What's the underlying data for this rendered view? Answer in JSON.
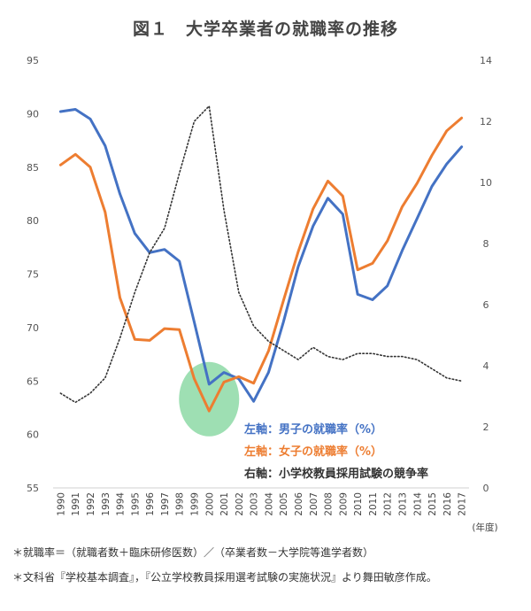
{
  "title": "図１　大学卒業者の就職率の推移",
  "notes": [
    "＊就職率＝（就職者数＋臨床研修医数）／（卒業者数－大学院等進学者数）",
    "＊文科省『学校基本調査』，『公立学校教員採用選考試験の実施状況』より舞田敏彦作成。"
  ],
  "chart_data": {
    "type": "line",
    "xlabel": "(年度)",
    "x": [
      1990,
      1991,
      1992,
      1993,
      1994,
      1995,
      1996,
      1997,
      1998,
      1999,
      2000,
      2001,
      2002,
      2003,
      2004,
      2005,
      2006,
      2007,
      2008,
      2009,
      2010,
      2011,
      2012,
      2013,
      2014,
      2015,
      2016,
      2017
    ],
    "left_axis": {
      "ylim": [
        55,
        95
      ],
      "ticks": [
        55,
        60,
        65,
        70,
        75,
        80,
        85,
        90,
        95
      ]
    },
    "right_axis": {
      "ylim": [
        0,
        14
      ],
      "ticks": [
        0,
        2,
        4,
        6,
        8,
        10,
        12,
        14
      ]
    },
    "series": [
      {
        "name": "左軸：男子の就職率（%）",
        "axis": "left",
        "color": "#4472C4",
        "style": "solid",
        "values": [
          90.2,
          90.4,
          89.5,
          87.0,
          82.5,
          78.8,
          77.0,
          77.3,
          76.2,
          70.5,
          64.7,
          65.8,
          65.2,
          63.1,
          65.8,
          70.5,
          75.7,
          79.5,
          82.1,
          80.6,
          73.1,
          72.6,
          73.9,
          77.2,
          80.2,
          83.2,
          85.3,
          86.9
        ]
      },
      {
        "name": "左軸：女子の就職率（%）",
        "axis": "left",
        "color": "#ED7D31",
        "style": "solid",
        "values": [
          85.2,
          86.2,
          85.0,
          80.8,
          72.8,
          68.9,
          68.8,
          69.9,
          69.8,
          65.2,
          62.2,
          64.9,
          65.4,
          64.8,
          67.8,
          72.5,
          77.1,
          81.1,
          83.7,
          82.3,
          75.4,
          76.0,
          78.1,
          81.3,
          83.5,
          86.1,
          88.4,
          89.6
        ]
      },
      {
        "name": "右軸：小学校教員採用試験の競争率",
        "axis": "right",
        "color": "#333333",
        "style": "dotted",
        "values": [
          3.1,
          2.8,
          3.1,
          3.6,
          4.9,
          6.4,
          7.7,
          8.5,
          10.3,
          12.0,
          12.5,
          9.1,
          6.4,
          5.3,
          4.8,
          4.5,
          4.2,
          4.6,
          4.3,
          4.2,
          4.4,
          4.4,
          4.3,
          4.3,
          4.2,
          3.9,
          3.6,
          3.5
        ]
      }
    ],
    "highlight": {
      "x": 2000,
      "color": "#7DD49A"
    }
  }
}
